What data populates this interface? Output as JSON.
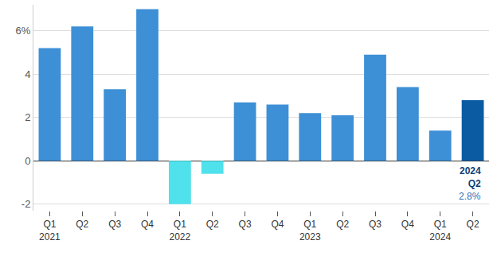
{
  "chart_data": {
    "type": "bar",
    "categories": [
      "Q1\n2021",
      "Q2",
      "Q3",
      "Q4",
      "Q1\n2022",
      "Q2",
      "Q3",
      "Q4",
      "Q1\n2023",
      "Q2",
      "Q3",
      "Q4",
      "Q1\n2024",
      "Q2"
    ],
    "values": [
      5.2,
      6.2,
      3.3,
      7.0,
      -2.0,
      -0.6,
      2.7,
      2.6,
      2.2,
      2.1,
      4.9,
      3.4,
      1.4,
      2.8
    ],
    "colors": [
      "#3d8fd6",
      "#3d8fd6",
      "#3d8fd6",
      "#3d8fd6",
      "#4fe1ec",
      "#4fe1ec",
      "#3d8fd6",
      "#3d8fd6",
      "#3d8fd6",
      "#3d8fd6",
      "#3d8fd6",
      "#3d8fd6",
      "#3d8fd6",
      "#0b5ba3"
    ],
    "ylim": [
      -2.3,
      7.2
    ],
    "yticks": [
      -2,
      0,
      2,
      4,
      {
        "value": 6,
        "label": "6%"
      }
    ],
    "grid": true,
    "data_labels": false,
    "annotations": [
      {
        "text": "2024\nQ2"
      },
      {
        "text": "2.8%"
      }
    ]
  }
}
